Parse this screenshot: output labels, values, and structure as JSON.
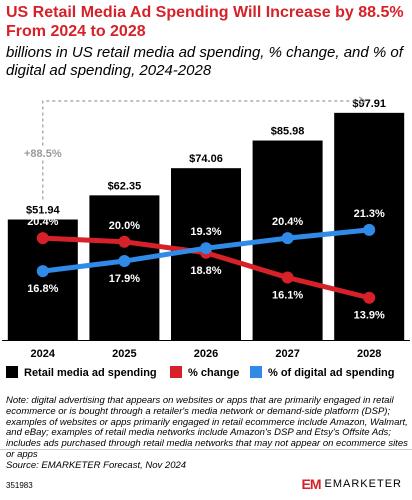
{
  "header": {
    "title": "US Retail Media Ad Spending Will Increase by 88.5% From 2024 to 2028",
    "subtitle": "billions in US retail media ad spending, % change, and % of digital ad spending, 2024-2028"
  },
  "chart_data": {
    "type": "bar",
    "categories": [
      "2024",
      "2025",
      "2026",
      "2027",
      "2028"
    ],
    "series": [
      {
        "name": "Retail media ad spending",
        "values": [
          51.94,
          62.35,
          74.06,
          85.98,
          97.91
        ],
        "labels": [
          "$51.94",
          "$62.35",
          "$74.06",
          "$85.98",
          "$97.91"
        ],
        "color": "#000000"
      },
      {
        "name": "% change",
        "values": [
          20.4,
          20.0,
          18.8,
          16.1,
          13.9
        ],
        "labels": [
          "20.4%",
          "20.0%",
          "18.8%",
          "16.1%",
          "13.9%"
        ],
        "color": "#d62128"
      },
      {
        "name": "% of digital ad spending",
        "values": [
          16.8,
          17.9,
          19.3,
          20.4,
          21.3
        ],
        "labels": [
          "16.8%",
          "17.9%",
          "19.3%",
          "20.4%",
          "21.3%"
        ],
        "color": "#2f8ae8"
      }
    ],
    "annotation": "+88.5%",
    "ylim": [
      0,
      100
    ],
    "pct_ylim": [
      10,
      30
    ],
    "legend_position": "bottom"
  },
  "note": "Note: digital advertising that appears on websites or apps that are primarily engaged in retail ecommerce or is bought through a retailer's media network or demand-side platform (DSP); examples of websites or apps primarily engaged in retail ecommerce include Amazon, Walmart, and eBay; examples of retail media networks include Amazon's DSP and Etsy's Offsite Ads; includes ads purchased through retail media networks that may not appear on ecommerce sites or apps",
  "source": "Source: EMARKETER Forecast, Nov 2024",
  "chart_id": "351983",
  "brand": {
    "mark": "EM",
    "name": "EMARKETER"
  },
  "colors": {
    "accent": "#d62128",
    "blue": "#2f8ae8",
    "bar": "#000000"
  }
}
